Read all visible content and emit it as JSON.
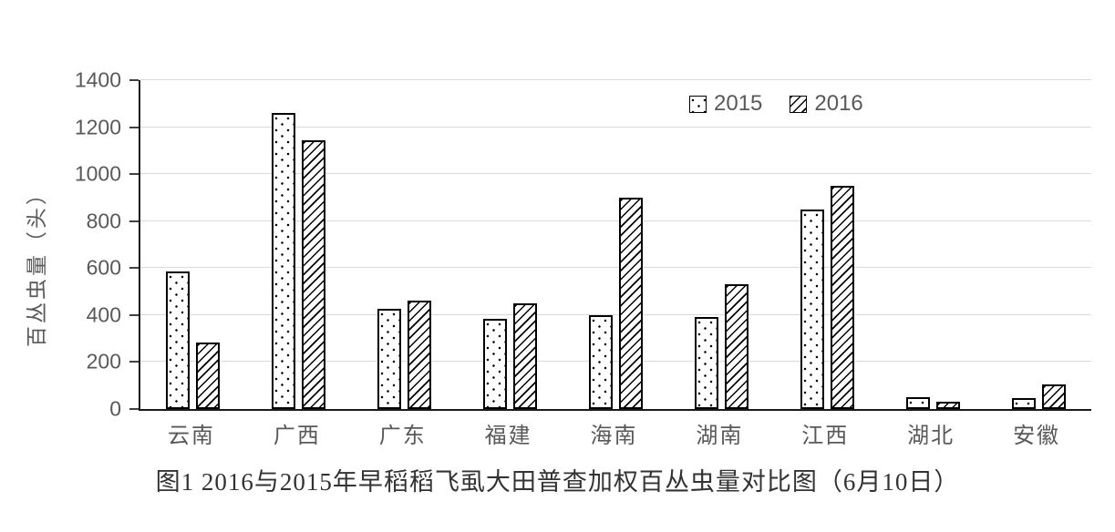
{
  "chart_data": {
    "type": "bar",
    "title": "图1 2016与2015年早稻稻飞虱大田普查加权百丛虫量对比图（6月10日）",
    "ylabel": "百丛虫量（头）",
    "categories": [
      "云南",
      "广西",
      "广东",
      "福建",
      "海南",
      "湖南",
      "江西",
      "湖北",
      "安徽"
    ],
    "series": [
      {
        "name": "2015",
        "pattern": "dots",
        "values": [
          585,
          1260,
          425,
          385,
          400,
          390,
          850,
          50,
          45
        ]
      },
      {
        "name": "2016",
        "pattern": "diagonal-hatch",
        "values": [
          285,
          1145,
          460,
          450,
          900,
          530,
          950,
          30,
          105
        ]
      }
    ],
    "ylim": [
      0,
      1400
    ],
    "ytick_step": 200,
    "yticks": [
      0,
      200,
      400,
      600,
      800,
      1000,
      1200,
      1400
    ],
    "grid": "horizontal",
    "legend_position": "top-right-inside"
  },
  "colors": {
    "bar_fill": "#ffffff",
    "bar_border": "#000000",
    "gridline": "#d9d9d9",
    "axis": "#1a1a1a",
    "tick_text": "#595959",
    "title_text": "#333333"
  }
}
